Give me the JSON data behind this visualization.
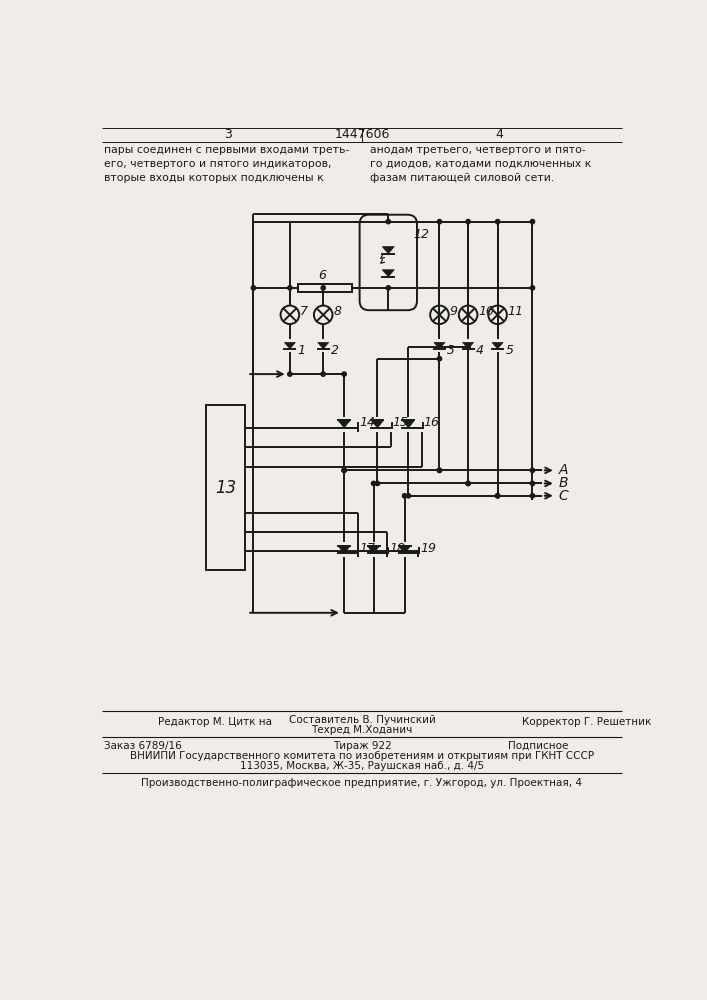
{
  "page_num_left": "3",
  "page_num_center": "1447606",
  "page_num_right": "4",
  "text_left": "пары соединен с первыми входами треть-\nего, четвертого и пятого индикаторов,\nвторые входы которых подключены к",
  "text_right": "анодам третьего, четвертого и пято-\nго диодов, катодами подключенных к\nфазам питающей силовой сети.",
  "footer_line1_left": "Редактор М. Цитк на",
  "footer_line1_center_1": "Составитель В. Пучинский",
  "footer_line1_center_2": "Техред М.Ходанич",
  "footer_line1_right": "Корректор Г. Решетник",
  "footer_line2_left": "Заказ 6789/16",
  "footer_line2_center": "Тираж 922",
  "footer_line2_right": "Подписное",
  "footer_line3": "ВНИИПИ Государственного комитета по изобретениям и открытиям при ГКНТ СССР",
  "footer_line4": "113035, Москва, Ж-35, Раушская наб., д. 4/5",
  "footer_line5": "Производственно-полиграфическое предприятие, г. Ужгород, ул. Проектная, 4",
  "bg_color": "#f0ede8",
  "line_color": "#1a1a1a"
}
